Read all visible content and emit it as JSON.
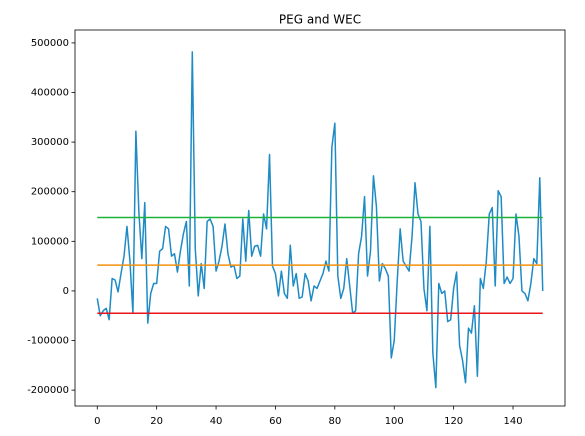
{
  "chart_data": {
    "type": "line",
    "title": "PEG and WEC",
    "x": [
      0,
      1,
      2,
      3,
      4,
      5,
      6,
      7,
      8,
      9,
      10,
      11,
      12,
      13,
      14,
      15,
      16,
      17,
      18,
      19,
      20,
      21,
      22,
      23,
      24,
      25,
      26,
      27,
      28,
      29,
      30,
      31,
      32,
      33,
      34,
      35,
      36,
      37,
      38,
      39,
      40,
      41,
      42,
      43,
      44,
      45,
      46,
      47,
      48,
      49,
      50,
      51,
      52,
      53,
      54,
      55,
      56,
      57,
      58,
      59,
      60,
      61,
      62,
      63,
      64,
      65,
      66,
      67,
      68,
      69,
      70,
      71,
      72,
      73,
      74,
      75,
      76,
      77,
      78,
      79,
      80,
      81,
      82,
      83,
      84,
      85,
      86,
      87,
      88,
      89,
      90,
      91,
      92,
      93,
      94,
      95,
      96,
      97,
      98,
      99,
      100,
      101,
      102,
      103,
      104,
      105,
      106,
      107,
      108,
      109,
      110,
      111,
      112,
      113,
      114,
      115,
      116,
      117,
      118,
      119,
      120,
      121,
      122,
      123,
      124,
      125,
      126,
      127,
      128,
      129,
      130,
      131,
      132,
      133,
      134,
      135,
      136,
      137,
      138,
      139,
      140,
      141,
      142,
      143,
      144,
      145,
      146,
      147,
      148,
      149,
      150
    ],
    "series": [
      {
        "color": "#1f8bc4",
        "values": [
          -15000,
          -50000,
          -40000,
          -35000,
          -58000,
          25000,
          22000,
          -2000,
          35000,
          70000,
          130000,
          60000,
          -45000,
          322000,
          160000,
          65000,
          178000,
          -65000,
          -5000,
          15000,
          15000,
          80000,
          85000,
          130000,
          125000,
          70000,
          75000,
          38000,
          80000,
          115000,
          140000,
          10000,
          482000,
          85000,
          -10000,
          55000,
          5000,
          140000,
          145000,
          130000,
          40000,
          60000,
          90000,
          135000,
          75000,
          48000,
          52000,
          25000,
          30000,
          145000,
          60000,
          162000,
          70000,
          90000,
          92000,
          70000,
          155000,
          125000,
          275000,
          50000,
          35000,
          -10000,
          40000,
          -5000,
          -15000,
          92000,
          10000,
          35000,
          -15000,
          -12000,
          35000,
          20000,
          -20000,
          10000,
          5000,
          20000,
          35000,
          60000,
          40000,
          290000,
          338000,
          30000,
          -15000,
          5000,
          65000,
          10000,
          -45000,
          -40000,
          75000,
          110000,
          190000,
          30000,
          80000,
          232000,
          170000,
          20000,
          55000,
          45000,
          30000,
          -135000,
          -100000,
          20000,
          125000,
          60000,
          50000,
          40000,
          110000,
          218000,
          155000,
          140000,
          5000,
          -40000,
          130000,
          -125000,
          -195000,
          15000,
          -5000,
          0,
          -62000,
          -58000,
          5000,
          38000,
          -110000,
          -140000,
          -185000,
          -75000,
          -85000,
          -30000,
          -172000,
          25000,
          5000,
          60000,
          155000,
          168000,
          10000,
          202000,
          190000,
          15000,
          28000,
          15000,
          25000,
          155000,
          110000,
          0,
          -5000,
          -20000,
          15000,
          65000,
          55000,
          228000,
          0
        ]
      },
      {
        "color": "#1db33a",
        "x": [
          0,
          150
        ],
        "values": [
          148000,
          148000
        ]
      },
      {
        "color": "#f5900f",
        "x": [
          0,
          150
        ],
        "values": [
          52000,
          52000
        ]
      },
      {
        "color": "#e8161c",
        "x": [
          0,
          150
        ],
        "values": [
          -45000,
          -45000
        ]
      }
    ],
    "xlim": [
      -7.5,
      157.5
    ],
    "ylim": [
      -232000,
      526000
    ],
    "xticks": [
      0,
      20,
      40,
      60,
      80,
      100,
      120,
      140
    ],
    "yticks": [
      -200000,
      -100000,
      0,
      100000,
      200000,
      300000,
      400000,
      500000
    ]
  }
}
